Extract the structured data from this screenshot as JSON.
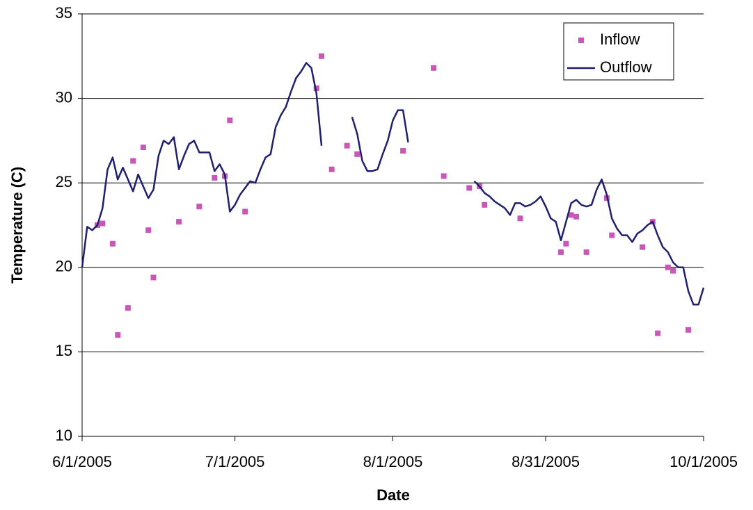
{
  "chart_data": {
    "type": "scatter-line",
    "xlabel": "Date",
    "ylabel": "Temperature (C)",
    "xlim": [
      "6/1/2005",
      "10/1/2005"
    ],
    "xticks": [
      "6/1/2005",
      "7/1/2005",
      "8/1/2005",
      "8/31/2005",
      "10/1/2005"
    ],
    "ylim": [
      10,
      35
    ],
    "yticks": [
      10,
      15,
      20,
      25,
      30,
      35
    ],
    "grid": true,
    "legend": "upper right",
    "series": [
      {
        "name": "Inflow",
        "color": "#c957b8",
        "kind": "scatter",
        "x": [
          "6/4/2005",
          "6/5/2005",
          "6/7/2005",
          "6/8/2005",
          "6/10/2005",
          "6/11/2005",
          "6/13/2005",
          "6/14/2005",
          "6/15/2005",
          "6/20/2005",
          "6/24/2005",
          "6/27/2005",
          "6/29/2005",
          "6/30/2005",
          "7/3/2005",
          "7/17/2005",
          "7/18/2005",
          "7/20/2005",
          "7/23/2005",
          "7/25/2005",
          "8/3/2005",
          "8/9/2005",
          "8/11/2005",
          "8/16/2005",
          "8/18/2005",
          "8/19/2005",
          "8/26/2005",
          "9/3/2005",
          "9/4/2005",
          "9/5/2005",
          "9/6/2005",
          "9/8/2005",
          "9/12/2005",
          "9/13/2005",
          "9/19/2005",
          "9/21/2005",
          "9/22/2005",
          "9/24/2005",
          "9/25/2005",
          "9/28/2005"
        ],
        "values": [
          22.5,
          22.6,
          21.4,
          16.0,
          17.6,
          26.3,
          27.1,
          22.2,
          19.4,
          22.7,
          23.6,
          25.3,
          25.4,
          28.7,
          23.3,
          30.6,
          32.5,
          25.8,
          27.2,
          26.7,
          26.9,
          31.8,
          25.4,
          24.7,
          24.8,
          23.7,
          22.9,
          20.9,
          21.4,
          23.1,
          23.0,
          20.9,
          24.1,
          21.9,
          21.2,
          22.7,
          16.1,
          20.0,
          19.8,
          16.3
        ]
      },
      {
        "name": "Outflow",
        "color": "#1f1f6e",
        "kind": "line",
        "x": [
          "6/1/2005",
          "6/2/2005",
          "6/3/2005",
          "6/4/2005",
          "6/5/2005",
          "6/6/2005",
          "6/7/2005",
          "6/8/2005",
          "6/9/2005",
          "6/10/2005",
          "6/11/2005",
          "6/12/2005",
          "6/13/2005",
          "6/14/2005",
          "6/15/2005",
          "6/16/2005",
          "6/17/2005",
          "6/18/2005",
          "6/19/2005",
          "6/20/2005",
          "6/21/2005",
          "6/22/2005",
          "6/23/2005",
          "6/24/2005",
          "6/25/2005",
          "6/26/2005",
          "6/27/2005",
          "6/28/2005",
          "6/29/2005",
          "6/30/2005",
          "7/1/2005",
          "7/2/2005",
          "7/3/2005",
          "7/4/2005",
          "7/5/2005",
          "7/6/2005",
          "7/7/2005",
          "7/8/2005",
          "7/9/2005",
          "7/10/2005",
          "7/11/2005",
          "7/12/2005",
          "7/13/2005",
          "7/14/2005",
          "7/15/2005",
          "7/16/2005",
          "7/17/2005",
          "7/18/2005",
          null,
          "7/24/2005",
          "7/25/2005",
          "7/26/2005",
          "7/27/2005",
          "7/28/2005",
          "7/29/2005",
          "7/30/2005",
          "7/31/2005",
          "8/1/2005",
          "8/2/2005",
          "8/3/2005",
          "8/4/2005",
          null,
          "8/17/2005",
          "8/18/2005",
          "8/19/2005",
          "8/20/2005",
          "8/21/2005",
          "8/22/2005",
          "8/23/2005",
          "8/24/2005",
          "8/25/2005",
          "8/26/2005",
          "8/27/2005",
          "8/28/2005",
          "8/29/2005",
          "8/30/2005",
          "8/31/2005",
          "9/1/2005",
          "9/2/2005",
          "9/3/2005",
          "9/4/2005",
          "9/5/2005",
          "9/6/2005",
          "9/7/2005",
          "9/8/2005",
          "9/9/2005",
          "9/10/2005",
          "9/11/2005",
          "9/12/2005",
          "9/13/2005",
          "9/14/2005",
          "9/15/2005",
          "9/16/2005",
          "9/17/2005",
          "9/18/2005",
          "9/19/2005",
          "9/20/2005",
          "9/21/2005",
          "9/22/2005",
          "9/23/2005",
          "9/24/2005",
          "9/25/2005",
          "9/26/2005",
          "9/27/2005",
          "9/28/2005",
          "9/29/2005",
          "9/30/2005",
          "10/1/2005"
        ],
        "values": [
          20.0,
          22.4,
          22.2,
          22.5,
          23.5,
          25.8,
          26.5,
          25.2,
          25.9,
          25.2,
          24.5,
          25.5,
          24.8,
          24.1,
          24.6,
          26.6,
          27.5,
          27.3,
          27.7,
          25.8,
          26.6,
          27.3,
          27.5,
          26.8,
          26.8,
          26.8,
          25.7,
          26.1,
          25.5,
          23.3,
          23.7,
          24.3,
          24.7,
          25.1,
          25.0,
          25.8,
          26.5,
          26.7,
          28.3,
          29.0,
          29.5,
          30.4,
          31.2,
          31.6,
          32.1,
          31.8,
          30.3,
          27.2,
          null,
          28.9,
          27.9,
          26.3,
          25.7,
          25.7,
          25.8,
          26.7,
          27.5,
          28.7,
          29.3,
          29.3,
          27.4,
          null,
          25.1,
          24.8,
          24.4,
          24.2,
          23.9,
          23.7,
          23.5,
          23.1,
          23.8,
          23.8,
          23.6,
          23.7,
          23.9,
          24.2,
          23.6,
          22.9,
          22.7,
          21.6,
          22.7,
          23.8,
          24.0,
          23.7,
          23.6,
          23.7,
          24.6,
          25.2,
          24.3,
          22.9,
          22.3,
          21.9,
          21.9,
          21.5,
          22.0,
          22.2,
          22.5,
          22.7,
          21.9,
          21.2,
          20.9,
          20.3,
          20.0,
          20.0,
          18.6,
          17.8,
          17.8,
          18.8
        ]
      }
    ]
  }
}
